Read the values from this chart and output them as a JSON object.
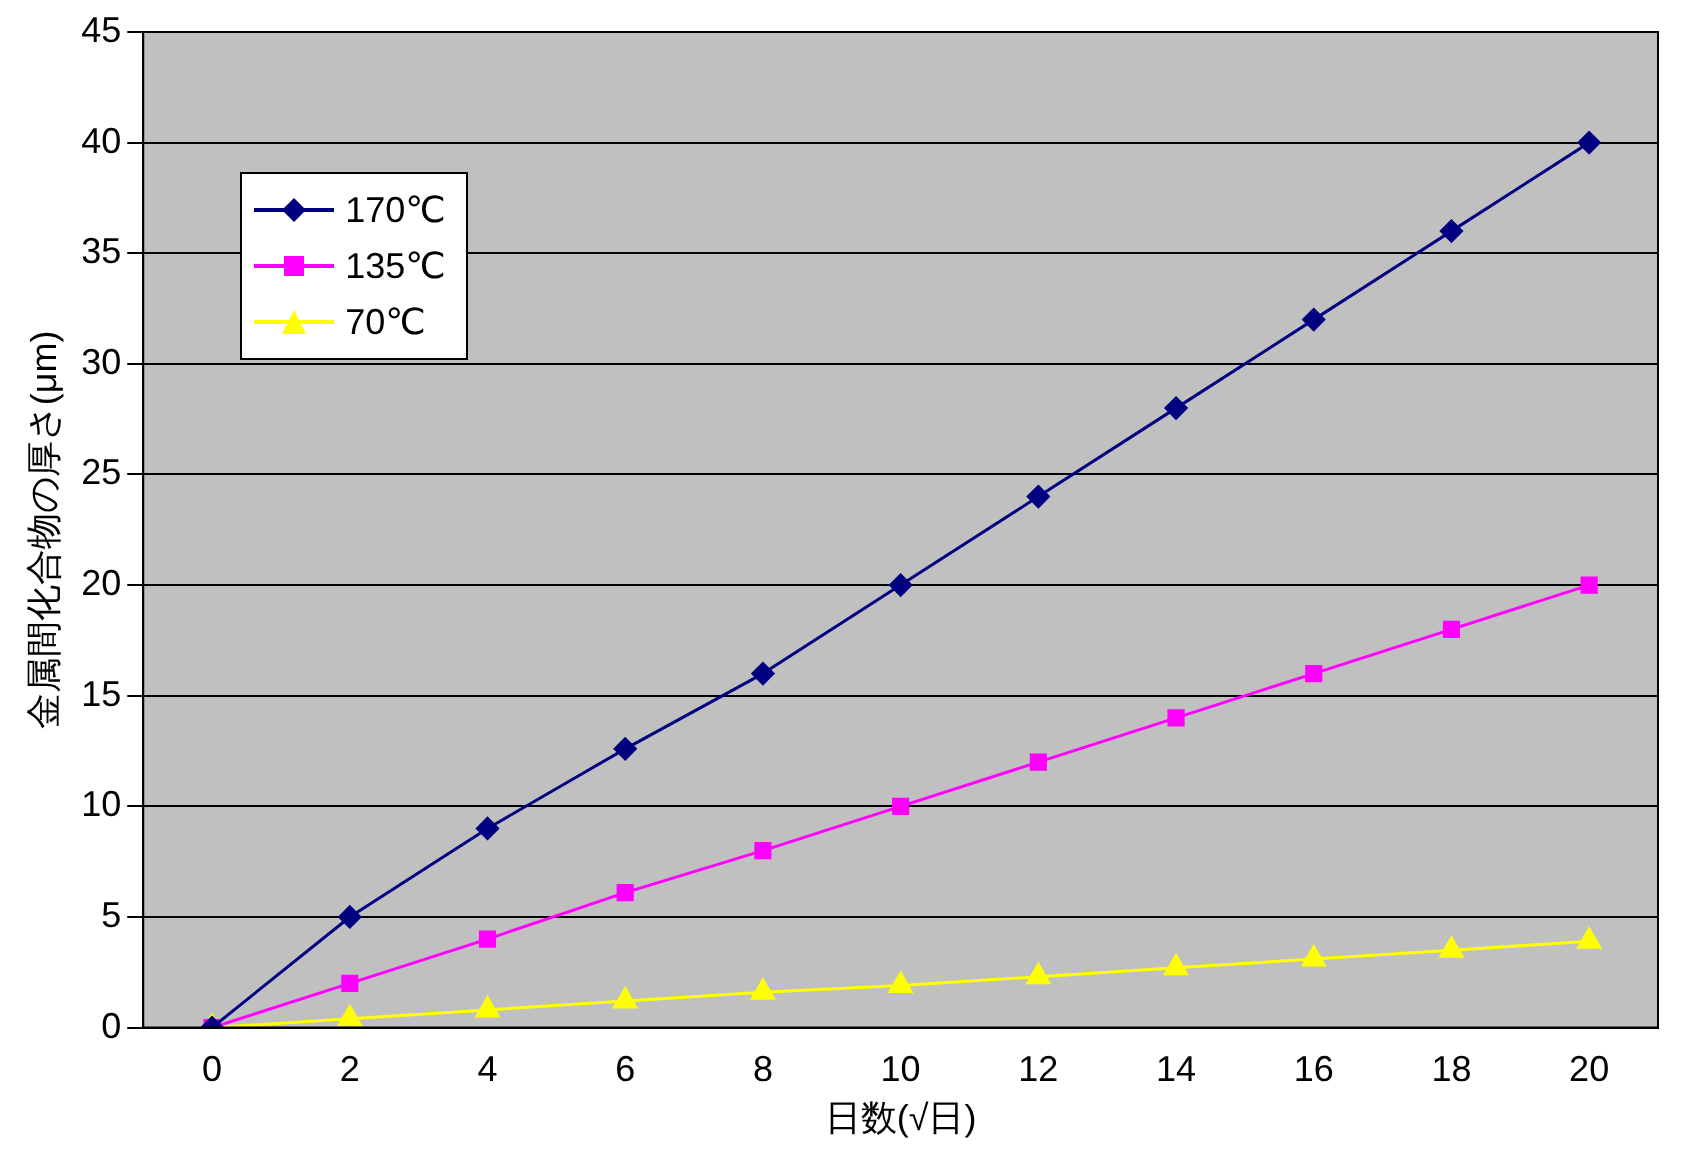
{
  "chart_data": {
    "type": "line",
    "xlabel": "日数(√日)",
    "ylabel": "金属間化合物の厚さ(μm)",
    "categories": [
      "0",
      "2",
      "4",
      "6",
      "8",
      "10",
      "12",
      "14",
      "16",
      "18",
      "20"
    ],
    "series": [
      {
        "name": "170℃",
        "color": "#000080",
        "marker": "diamond",
        "values": [
          0,
          5,
          9,
          12.6,
          16,
          20,
          24,
          28,
          32,
          36,
          40
        ]
      },
      {
        "name": "135℃",
        "color": "#ff00ff",
        "marker": "square",
        "values": [
          0,
          2,
          4,
          6.1,
          8,
          10,
          12,
          14,
          16,
          18,
          20
        ]
      },
      {
        "name": "70℃",
        "color": "#ffff00",
        "marker": "triangle",
        "values": [
          0,
          0.4,
          0.8,
          1.2,
          1.6,
          1.9,
          2.3,
          2.7,
          3.1,
          3.5,
          3.9
        ]
      }
    ],
    "ylim": [
      0,
      45
    ],
    "yticks": [
      0,
      5,
      10,
      15,
      20,
      25,
      30,
      35,
      40,
      45
    ],
    "grid": "y",
    "legend": "top left"
  }
}
